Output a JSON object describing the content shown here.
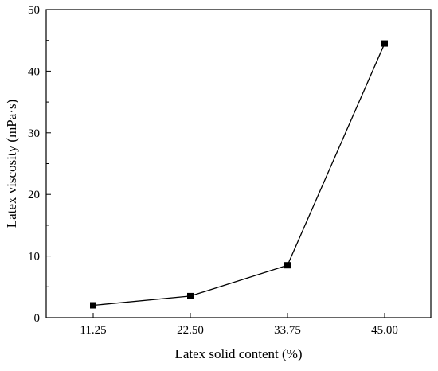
{
  "chart_data": {
    "type": "line",
    "title": "",
    "xlabel": "Latex solid content (%)",
    "ylabel": "Latex viscosity (mPa·s)",
    "categories": [
      "11.25",
      "22.50",
      "33.75",
      "45.00"
    ],
    "series": [
      {
        "values": [
          2.0,
          3.5,
          8.5,
          44.5
        ],
        "marker": "square",
        "color": "#000000"
      }
    ],
    "ylim": [
      0,
      50
    ],
    "yticks": [
      0,
      10,
      20,
      30,
      40,
      50
    ],
    "grid": false,
    "legend": "none"
  }
}
